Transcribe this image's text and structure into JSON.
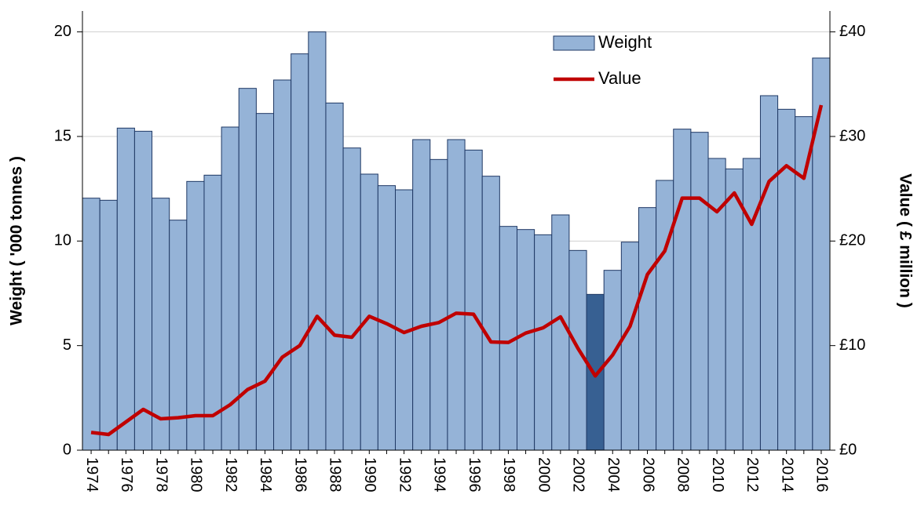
{
  "chart_data": {
    "type": "bar-line",
    "categories": [
      "1974",
      null,
      "1976",
      null,
      "1978",
      null,
      "1980",
      null,
      "1982",
      null,
      "1984",
      null,
      "1986",
      null,
      "1988",
      null,
      "1990",
      null,
      "1992",
      null,
      "1994",
      null,
      "1996",
      null,
      "1998",
      null,
      "2000",
      null,
      "2002",
      null,
      "2004",
      null,
      "2006",
      null,
      "2008",
      null,
      "2010",
      null,
      "2012",
      null,
      "2014",
      null,
      "2016"
    ],
    "series": [
      {
        "name": "Weight",
        "kind": "bar",
        "color": "#95b3d7",
        "colors": [
          "#95b3d7",
          "#95b3d7",
          "#95b3d7",
          "#95b3d7",
          "#95b3d7",
          "#95b3d7",
          "#95b3d7",
          "#95b3d7",
          "#95b3d7",
          "#95b3d7",
          "#95b3d7",
          "#95b3d7",
          "#95b3d7",
          "#95b3d7",
          "#95b3d7",
          "#95b3d7",
          "#95b3d7",
          "#95b3d7",
          "#95b3d7",
          "#95b3d7",
          "#95b3d7",
          "#95b3d7",
          "#95b3d7",
          "#95b3d7",
          "#95b3d7",
          "#95b3d7",
          "#95b3d7",
          "#95b3d7",
          "#95b3d7",
          "#376092",
          "#95b3d7",
          "#95b3d7",
          "#95b3d7",
          "#95b3d7",
          "#95b3d7",
          "#95b3d7",
          "#95b3d7",
          "#95b3d7",
          "#95b3d7",
          "#95b3d7",
          "#95b3d7",
          "#95b3d7",
          "#95b3d7"
        ],
        "values": [
          12.05,
          11.95,
          15.4,
          15.25,
          12.05,
          11.0,
          12.85,
          13.15,
          15.45,
          17.3,
          16.1,
          17.7,
          18.95,
          20.0,
          16.6,
          14.45,
          13.2,
          12.65,
          12.45,
          14.85,
          13.9,
          14.85,
          14.35,
          13.1,
          10.7,
          10.55,
          10.3,
          11.25,
          9.55,
          7.45,
          8.6,
          9.95,
          11.6,
          12.9,
          15.35,
          15.2,
          13.95,
          13.45,
          13.95,
          16.95,
          16.3,
          15.95,
          18.75
        ]
      },
      {
        "name": "Value",
        "kind": "line",
        "axis": "y2",
        "color": "#c00000",
        "values": [
          1.7,
          1.5,
          2.7,
          3.9,
          3.0,
          3.1,
          3.3,
          3.3,
          4.35,
          5.8,
          6.6,
          8.9,
          10.0,
          12.8,
          11.0,
          10.8,
          12.8,
          12.1,
          11.25,
          11.85,
          12.2,
          13.1,
          13.0,
          10.35,
          10.3,
          11.2,
          11.7,
          12.75,
          9.75,
          7.1,
          9.1,
          11.85,
          16.8,
          19.05,
          24.1,
          24.1,
          22.8,
          24.6,
          21.6,
          25.7,
          27.2,
          26.0,
          33.0
        ]
      }
    ],
    "y_label": "Weight ( '000 tonnes )",
    "y2_label": "Value ( £ million )",
    "ylim": [
      0,
      21
    ],
    "yticks": [
      0,
      5,
      10,
      15,
      20
    ],
    "y2lim": [
      0,
      42
    ],
    "y2ticks": [
      {
        "value": 0,
        "label": "£0"
      },
      {
        "value": 10,
        "label": "£10"
      },
      {
        "value": 20,
        "label": "£20"
      },
      {
        "value": 30,
        "label": "£30"
      },
      {
        "value": 40,
        "label": "£40"
      }
    ],
    "grid": true,
    "legend": "top"
  }
}
